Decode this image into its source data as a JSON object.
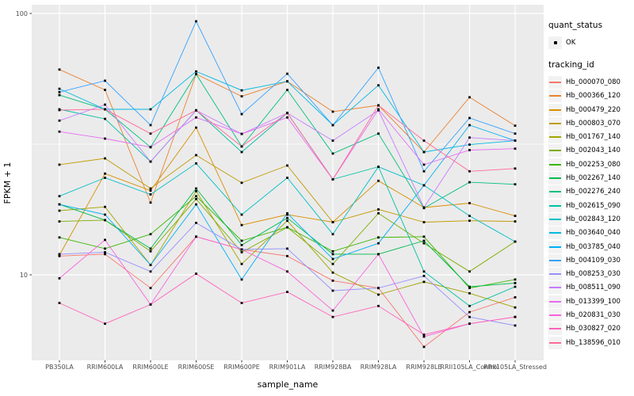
{
  "colors": {
    "panel_bg": "#EBEBEB",
    "grid": "#FFFFFF",
    "legend_key_bg": "#F2F2F2",
    "tick_label": "#4D4D4D",
    "axis_title": "#000000",
    "point": "#000000"
  },
  "legend": {
    "quant_status_title": "quant_status",
    "quant_status_items": [
      {
        "label": "OK",
        "marker": "point-icon",
        "color": "#000000"
      }
    ],
    "tracking_title": "tracking_id"
  },
  "chart_data": {
    "type": "line",
    "title": "",
    "xlabel": "sample_name",
    "ylabel": "FPKM + 1",
    "x_scale": "discrete",
    "y_scale": "log10",
    "y_ticks": [
      10,
      100
    ],
    "y_minor_breaks": [
      31.62
    ],
    "ylim": [
      4.6,
      108
    ],
    "grid": true,
    "legend_position": "right",
    "point_marker": "small black square, quant_status = OK",
    "categories": [
      "PB350LA",
      "RRIM600LA",
      "RRIM600LE",
      "RRIM600SE",
      "RRIM600PE",
      "RRIM901LA",
      "RRIM928BA",
      "RRIM928LA",
      "RRIM928LE",
      "RRII105LA_Control",
      "RRII105LA_Stressed"
    ],
    "series": [
      {
        "name": "Hb_000070_080",
        "color": "#F8766D",
        "quant_status": "OK",
        "values": [
          11.8,
          12.0,
          8.9,
          14.0,
          12.5,
          11.8,
          9.5,
          8.9,
          5.3,
          7.2,
          8.2
        ]
      },
      {
        "name": "Hb_000366_120",
        "color": "#EA8331",
        "quant_status": "OK",
        "values": [
          61.0,
          51.0,
          18.9,
          58.6,
          48.2,
          55.0,
          42.1,
          44.5,
          29.5,
          47.8,
          37.2
        ]
      },
      {
        "name": "Hb_000479_220",
        "color": "#D89000",
        "quant_status": "OK",
        "values": [
          11.9,
          24.4,
          21.0,
          36.6,
          15.5,
          17.0,
          15.9,
          22.9,
          18.1,
          18.8,
          16.8
        ]
      },
      {
        "name": "Hb_000803_070",
        "color": "#C09B00",
        "quant_status": "OK",
        "values": [
          26.4,
          27.9,
          21.4,
          28.7,
          22.5,
          26.2,
          15.9,
          17.8,
          15.9,
          16.1,
          16.0
        ]
      },
      {
        "name": "Hb_001767_140",
        "color": "#A3A500",
        "quant_status": "OK",
        "values": [
          17.6,
          18.2,
          10.9,
          20.9,
          11.0,
          16.1,
          10.2,
          8.4,
          9.4,
          8.5,
          7.5
        ]
      },
      {
        "name": "Hb_002043_140",
        "color": "#7CAE00",
        "quant_status": "OK",
        "values": [
          16.0,
          16.2,
          12.3,
          19.5,
          12.2,
          15.2,
          11.0,
          17.2,
          13.2,
          10.3,
          13.4
        ]
      },
      {
        "name": "Hb_002253_080",
        "color": "#39B600",
        "quant_status": "OK",
        "values": [
          13.9,
          12.6,
          14.3,
          20.0,
          13.5,
          15.2,
          12.3,
          13.9,
          14.0,
          8.9,
          9.6
        ]
      },
      {
        "name": "Hb_002267_140",
        "color": "#00BB4E",
        "quant_status": "OK",
        "values": [
          18.6,
          16.2,
          12.6,
          21.4,
          13.0,
          16.5,
          12.0,
          12.0,
          13.5,
          9.0,
          9.3
        ]
      },
      {
        "name": "Hb_002276_240",
        "color": "#00BF7D",
        "quant_status": "OK",
        "values": [
          48.7,
          43.0,
          30.8,
          58.6,
          31.0,
          51.0,
          29.1,
          34.7,
          18.0,
          22.6,
          22.2
        ]
      },
      {
        "name": "Hb_002615_090",
        "color": "#00C1A3",
        "quant_status": "OK",
        "values": [
          43.0,
          39.5,
          27.1,
          42.6,
          29.5,
          41.6,
          23.2,
          25.9,
          10.3,
          7.6,
          9.0
        ]
      },
      {
        "name": "Hb_002843_120",
        "color": "#00BFC4",
        "quant_status": "OK",
        "values": [
          20.0,
          23.5,
          20.3,
          26.7,
          17.0,
          23.5,
          14.3,
          25.9,
          22.0,
          16.8,
          13.4
        ]
      },
      {
        "name": "Hb_003640_040",
        "color": "#00BAE0",
        "quant_status": "OK",
        "values": [
          51.5,
          43.0,
          43.0,
          60.0,
          50.8,
          55.0,
          37.4,
          53.1,
          29.5,
          31.5,
          32.6
        ]
      },
      {
        "name": "Hb_003785_040",
        "color": "#00B0F6",
        "quant_status": "OK",
        "values": [
          18.6,
          17.0,
          10.9,
          18.6,
          9.6,
          17.2,
          11.5,
          13.2,
          22.0,
          37.4,
          32.6
        ]
      },
      {
        "name": "Hb_004109_030",
        "color": "#35A2FF",
        "quant_status": "OK",
        "values": [
          50.0,
          55.3,
          37.4,
          93.3,
          41.2,
          58.8,
          37.4,
          62.0,
          24.9,
          39.8,
          34.7
        ]
      },
      {
        "name": "Hb_008253_030",
        "color": "#9590FF",
        "quant_status": "OK",
        "values": [
          12.0,
          12.2,
          10.3,
          15.8,
          12.5,
          12.6,
          8.7,
          8.9,
          9.9,
          6.9,
          6.4
        ]
      },
      {
        "name": "Hb_008511_090",
        "color": "#C77CFF",
        "quant_status": "OK",
        "values": [
          38.9,
          44.8,
          27.1,
          42.6,
          34.6,
          41.6,
          32.6,
          42.6,
          18.1,
          33.5,
          32.6
        ]
      },
      {
        "name": "Hb_013399_100",
        "color": "#E76BF3",
        "quant_status": "OK",
        "values": [
          35.3,
          33.2,
          30.8,
          40.0,
          34.6,
          40.0,
          23.2,
          43.0,
          26.4,
          30.0,
          30.4
        ]
      },
      {
        "name": "Hb_020831_030",
        "color": "#FA62DB",
        "quant_status": "OK",
        "values": [
          9.7,
          13.6,
          7.7,
          14.0,
          12.5,
          10.3,
          7.3,
          12.0,
          5.8,
          6.5,
          6.9
        ]
      },
      {
        "name": "Hb_030827_020",
        "color": "#FF62BC",
        "quant_status": "OK",
        "values": [
          7.8,
          6.5,
          7.7,
          10.1,
          7.8,
          8.6,
          6.9,
          7.6,
          5.9,
          6.5,
          6.9
        ]
      },
      {
        "name": "Hb_138596_010",
        "color": "#FF6A98",
        "quant_status": "OK",
        "values": [
          42.7,
          43.0,
          34.7,
          42.6,
          31.0,
          41.6,
          23.2,
          44.5,
          32.6,
          24.9,
          25.5
        ]
      }
    ]
  }
}
